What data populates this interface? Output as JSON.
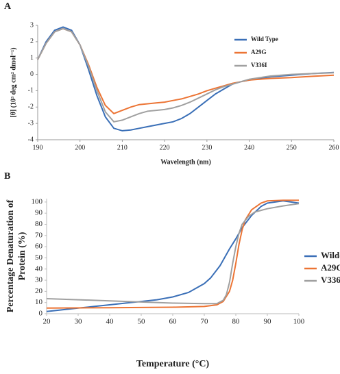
{
  "chart_data": [
    {
      "type": "line",
      "panel_label": "A",
      "xlabel": "Wavelength (nm)",
      "ylabel": [
        "[θ] (10³ deg cm² dmol⁻¹)"
      ],
      "xlim": [
        190,
        260
      ],
      "xticks": [
        190,
        200,
        210,
        220,
        230,
        240,
        250,
        260
      ],
      "ylim": [
        -4,
        3
      ],
      "yticks": [
        -4,
        -3,
        -2,
        -1,
        0,
        1,
        2,
        3
      ],
      "legend_position": "upper right",
      "series": [
        {
          "name": "Wild Type",
          "color": "#3a6fb7",
          "x": [
            190,
            192,
            194,
            196,
            198,
            200,
            202,
            204,
            206,
            208,
            210,
            212,
            214,
            216,
            218,
            220,
            222,
            224,
            226,
            228,
            230,
            232,
            234,
            236,
            238,
            240,
            245,
            250,
            255,
            260
          ],
          "values": [
            0.9,
            2.0,
            2.7,
            2.9,
            2.7,
            1.8,
            0.3,
            -1.3,
            -2.6,
            -3.3,
            -3.45,
            -3.4,
            -3.3,
            -3.2,
            -3.1,
            -3.0,
            -2.9,
            -2.7,
            -2.4,
            -2.0,
            -1.6,
            -1.2,
            -0.9,
            -0.6,
            -0.45,
            -0.35,
            -0.15,
            -0.05,
            0.05,
            0.12
          ]
        },
        {
          "name": "A29G",
          "color": "#ec7434",
          "x": [
            190,
            192,
            194,
            196,
            198,
            200,
            202,
            204,
            206,
            208,
            210,
            212,
            214,
            216,
            218,
            220,
            222,
            224,
            226,
            228,
            230,
            232,
            234,
            236,
            238,
            240,
            245,
            250,
            255,
            260
          ],
          "values": [
            0.9,
            1.9,
            2.6,
            2.8,
            2.6,
            1.8,
            0.6,
            -0.8,
            -1.9,
            -2.4,
            -2.2,
            -2.0,
            -1.85,
            -1.8,
            -1.75,
            -1.7,
            -1.6,
            -1.5,
            -1.35,
            -1.2,
            -1.0,
            -0.85,
            -0.7,
            -0.55,
            -0.45,
            -0.35,
            -0.25,
            -0.2,
            -0.12,
            -0.05
          ]
        },
        {
          "name": "V336I",
          "color": "#a0a0a0",
          "x": [
            190,
            192,
            194,
            196,
            198,
            200,
            202,
            204,
            206,
            208,
            210,
            212,
            214,
            216,
            218,
            220,
            222,
            224,
            226,
            228,
            230,
            232,
            234,
            236,
            238,
            240,
            245,
            250,
            255,
            260
          ],
          "values": [
            0.9,
            1.9,
            2.6,
            2.8,
            2.6,
            1.8,
            0.5,
            -1.0,
            -2.3,
            -2.9,
            -2.8,
            -2.6,
            -2.4,
            -2.25,
            -2.2,
            -2.15,
            -2.05,
            -1.9,
            -1.7,
            -1.45,
            -1.2,
            -0.95,
            -0.75,
            -0.6,
            -0.45,
            -0.3,
            -0.1,
            0.0,
            0.05,
            0.1
          ]
        }
      ]
    },
    {
      "type": "line",
      "panel_label": "B",
      "xlabel": "Temperature (°C)",
      "ylabel": [
        "Percentage Denaturation of",
        "Protein (%)"
      ],
      "xlim": [
        20,
        100
      ],
      "xticks": [
        20,
        30,
        40,
        50,
        60,
        70,
        80,
        90,
        100
      ],
      "ylim": [
        0,
        103
      ],
      "yticks": [
        0,
        10,
        20,
        30,
        40,
        50,
        60,
        70,
        80,
        90,
        100
      ],
      "legend_position": "right",
      "series": [
        {
          "name": "Wild-Type",
          "color": "#3a6fb7",
          "x": [
            20,
            25,
            30,
            35,
            40,
            45,
            50,
            55,
            60,
            65,
            70,
            72,
            75,
            78,
            80,
            82,
            85,
            88,
            90,
            95,
            100
          ],
          "values": [
            2,
            3.5,
            5,
            6.5,
            8,
            9.5,
            11,
            12.5,
            15,
            19,
            27,
            32,
            43,
            58,
            67,
            77,
            88,
            96,
            99,
            101,
            99
          ]
        },
        {
          "name": "A29G",
          "color": "#ec7434",
          "x": [
            20,
            30,
            40,
            50,
            60,
            70,
            74,
            76,
            78,
            79,
            80,
            81,
            82,
            83,
            85,
            88,
            90,
            95,
            100
          ],
          "values": [
            5,
            5.2,
            5.4,
            5.6,
            5.8,
            6.5,
            8,
            11,
            20,
            30,
            45,
            62,
            75,
            84,
            93,
            99,
            101,
            101.5,
            101.5
          ]
        },
        {
          "name": "V336I",
          "color": "#a0a0a0",
          "x": [
            20,
            30,
            40,
            50,
            60,
            70,
            74,
            76,
            77,
            78,
            79,
            80,
            81,
            82,
            84,
            86,
            90,
            95,
            100
          ],
          "values": [
            13.5,
            12.5,
            11.5,
            10.5,
            9.5,
            9,
            9,
            12,
            17,
            28,
            45,
            60,
            72,
            80,
            87,
            91,
            94,
            96.5,
            98.5
          ]
        }
      ]
    }
  ]
}
